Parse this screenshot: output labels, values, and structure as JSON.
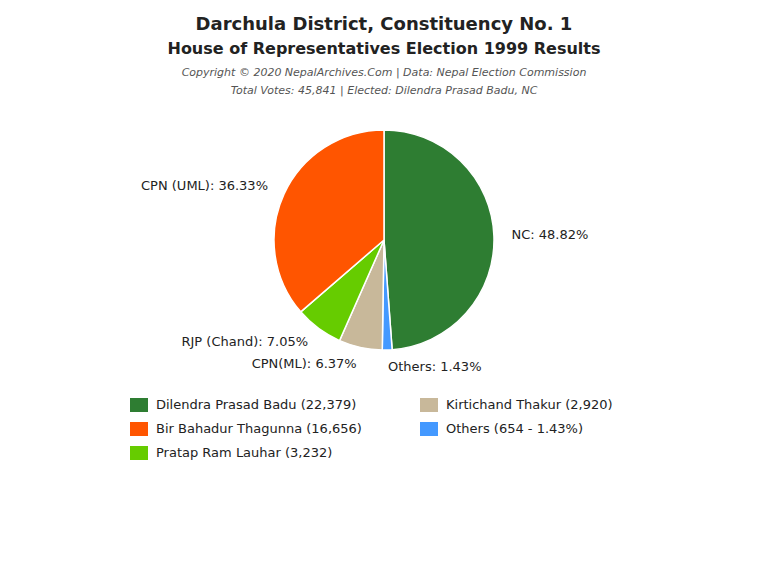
{
  "chart_data": {
    "type": "pie",
    "title": "Darchula District, Constituency No. 1",
    "subtitle": "House of Representatives Election 1999 Results",
    "annotations": [
      "Copyright © 2020 NepalArchives.Com | Data: Nepal Election Commission",
      "Total Votes: 45,841 | Elected: Dilendra Prasad Badu, NC"
    ],
    "values": [
      48.82,
      1.43,
      6.37,
      7.05,
      36.33
    ],
    "value_labels": [
      "NC: 48.82%",
      "Others: 1.43%",
      "CPN(ML): 6.37%",
      "RJP (Chand): 7.05%",
      "CPN (UML): 36.33%"
    ],
    "colors": [
      "#2e7d32",
      "#4499ff",
      "#c8b89a",
      "#66cc00",
      "#ff5500"
    ],
    "data_labels": true,
    "legend": "bottom",
    "legend_items": [
      {
        "name": "Dilendra Prasad Badu (22,379)",
        "color": "#2e7d32"
      },
      {
        "name": "Bir Bahadur Thagunna (16,656)",
        "color": "#ff5500"
      },
      {
        "name": "Pratap Ram Lauhar (3,232)",
        "color": "#66cc00"
      },
      {
        "name": "Kirtichand Thakur (2,920)",
        "color": "#c8b89a"
      },
      {
        "name": "Others (654 - 1.43%)",
        "color": "#4499ff"
      }
    ]
  }
}
